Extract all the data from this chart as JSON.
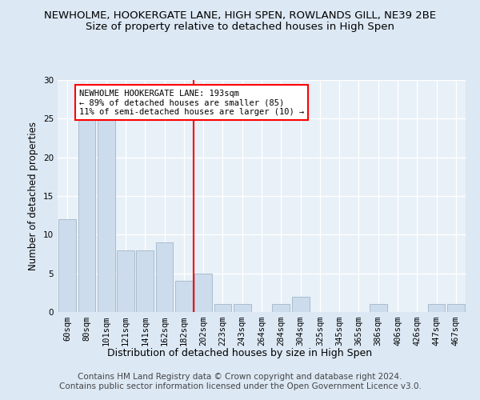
{
  "title": "NEWHOLME, HOOKERGATE LANE, HIGH SPEN, ROWLANDS GILL, NE39 2BE",
  "subtitle": "Size of property relative to detached houses in High Spen",
  "xlabel": "Distribution of detached houses by size in High Spen",
  "ylabel": "Number of detached properties",
  "categories": [
    "60sqm",
    "80sqm",
    "101sqm",
    "121sqm",
    "141sqm",
    "162sqm",
    "182sqm",
    "202sqm",
    "223sqm",
    "243sqm",
    "264sqm",
    "284sqm",
    "304sqm",
    "325sqm",
    "345sqm",
    "365sqm",
    "386sqm",
    "406sqm",
    "426sqm",
    "447sqm",
    "467sqm"
  ],
  "values": [
    12,
    25,
    25,
    8,
    8,
    9,
    4,
    5,
    1,
    1,
    0,
    1,
    2,
    0,
    0,
    0,
    1,
    0,
    0,
    1,
    1
  ],
  "bar_color": "#ccdcec",
  "bar_edgecolor": "#aabccc",
  "vline_x_index": 7,
  "vline_color": "red",
  "annotation_text": "NEWHOLME HOOKERGATE LANE: 193sqm\n← 89% of detached houses are smaller (85)\n11% of semi-detached houses are larger (10) →",
  "annotation_box_color": "white",
  "annotation_box_edgecolor": "red",
  "ylim": [
    0,
    30
  ],
  "yticks": [
    0,
    5,
    10,
    15,
    20,
    25,
    30
  ],
  "footer_text": "Contains HM Land Registry data © Crown copyright and database right 2024.\nContains public sector information licensed under the Open Government Licence v3.0.",
  "bg_color": "#dce8f4",
  "plot_bg_color": "#e8f0f8",
  "grid_color": "white",
  "title_fontsize": 9.5,
  "subtitle_fontsize": 9.5,
  "xlabel_fontsize": 9,
  "ylabel_fontsize": 8.5,
  "tick_fontsize": 7.5,
  "annotation_fontsize": 7.5,
  "footer_fontsize": 7.5
}
